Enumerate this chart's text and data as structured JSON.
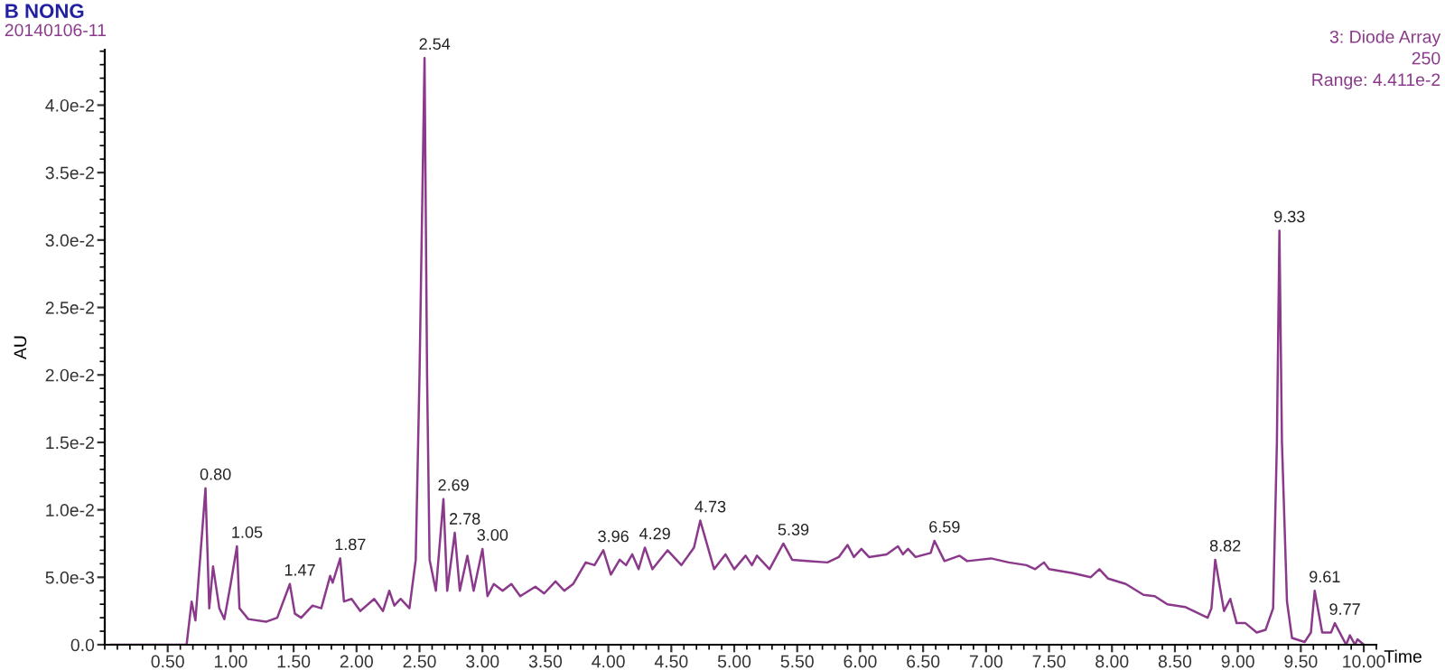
{
  "chart_data": {
    "type": "line",
    "title": "B NONG",
    "subtitle": "20140106-11",
    "xlabel": "Time",
    "ylabel": "AU",
    "annotations": [
      "3: Diode Array",
      "250",
      "Range: 4.411e-2",
      {
        "text": "0.80",
        "x": 0.8,
        "y": 0.0116
      },
      {
        "text": "1.05",
        "x": 1.05,
        "y": 0.0073
      },
      {
        "text": "1.47",
        "x": 1.47,
        "y": 0.0045
      },
      {
        "text": "1.87",
        "x": 1.87,
        "y": 0.0064
      },
      {
        "text": "2.54",
        "x": 2.54,
        "y": 0.0435
      },
      {
        "text": "2.69",
        "x": 2.69,
        "y": 0.0108
      },
      {
        "text": "2.78",
        "x": 2.78,
        "y": 0.0083
      },
      {
        "text": "3.00",
        "x": 3.0,
        "y": 0.0071
      },
      {
        "text": "3.96",
        "x": 3.96,
        "y": 0.007
      },
      {
        "text": "4.29",
        "x": 4.29,
        "y": 0.0072
      },
      {
        "text": "4.73",
        "x": 4.73,
        "y": 0.0092
      },
      {
        "text": "5.39",
        "x": 5.39,
        "y": 0.0075
      },
      {
        "text": "6.59",
        "x": 6.59,
        "y": 0.0077
      },
      {
        "text": "8.82",
        "x": 8.82,
        "y": 0.0063
      },
      {
        "text": "9.33",
        "x": 9.33,
        "y": 0.0307
      },
      {
        "text": "9.61",
        "x": 9.61,
        "y": 0.004
      },
      {
        "text": "9.77",
        "x": 9.77,
        "y": 0.0016
      }
    ],
    "series": [
      {
        "color": "#8b3a8b",
        "x": [
          0.05,
          0.65,
          0.69,
          0.72,
          0.8,
          0.83,
          0.86,
          0.91,
          0.95,
          1.0,
          1.05,
          1.07,
          1.14,
          1.28,
          1.37,
          1.47,
          1.51,
          1.56,
          1.65,
          1.72,
          1.79,
          1.81,
          1.87,
          1.9,
          1.96,
          2.03,
          2.14,
          2.21,
          2.26,
          2.3,
          2.35,
          2.42,
          2.47,
          2.5,
          2.54,
          2.56,
          2.58,
          2.63,
          2.69,
          2.72,
          2.78,
          2.82,
          2.88,
          2.93,
          3.0,
          3.04,
          3.09,
          3.16,
          3.23,
          3.3,
          3.42,
          3.49,
          3.58,
          3.65,
          3.72,
          3.82,
          3.89,
          3.96,
          4.02,
          4.09,
          4.14,
          4.19,
          4.24,
          4.29,
          4.35,
          4.47,
          4.58,
          4.68,
          4.73,
          4.84,
          4.93,
          5.0,
          5.09,
          5.14,
          5.18,
          5.28,
          5.39,
          5.46,
          5.6,
          5.74,
          5.83,
          5.9,
          5.95,
          6.01,
          6.07,
          6.21,
          6.3,
          6.34,
          6.38,
          6.44,
          6.56,
          6.59,
          6.67,
          6.79,
          6.85,
          7.04,
          7.18,
          7.32,
          7.39,
          7.46,
          7.5,
          7.69,
          7.83,
          7.9,
          7.97,
          8.11,
          8.25,
          8.34,
          8.44,
          8.58,
          8.76,
          8.79,
          8.82,
          8.89,
          8.94,
          8.99,
          9.06,
          9.15,
          9.22,
          9.28,
          9.31,
          9.33,
          9.35,
          9.39,
          9.43,
          9.53,
          9.58,
          9.61,
          9.67,
          9.74,
          9.77,
          9.86,
          9.89,
          9.93,
          9.95,
          10.0
        ],
        "values": [
          0,
          0,
          0.0032,
          0.0018,
          0.0116,
          0.0027,
          0.0058,
          0.0027,
          0.0019,
          0.0045,
          0.0073,
          0.0027,
          0.0019,
          0.0017,
          0.002,
          0.0045,
          0.0023,
          0.002,
          0.0029,
          0.0027,
          0.0051,
          0.0046,
          0.0064,
          0.0032,
          0.0034,
          0.0025,
          0.0034,
          0.0025,
          0.004,
          0.0029,
          0.0034,
          0.0027,
          0.0063,
          0.02,
          0.0435,
          0.02,
          0.0063,
          0.004,
          0.0108,
          0.004,
          0.0083,
          0.004,
          0.0066,
          0.004,
          0.0071,
          0.0036,
          0.0045,
          0.004,
          0.0045,
          0.0036,
          0.0043,
          0.0038,
          0.0047,
          0.004,
          0.0045,
          0.0061,
          0.0059,
          0.007,
          0.0052,
          0.0063,
          0.0059,
          0.0067,
          0.0056,
          0.0072,
          0.0056,
          0.007,
          0.0059,
          0.0072,
          0.0092,
          0.0056,
          0.0067,
          0.0056,
          0.0066,
          0.0059,
          0.0066,
          0.0056,
          0.0075,
          0.0063,
          0.0062,
          0.0061,
          0.0065,
          0.0074,
          0.0065,
          0.0071,
          0.0065,
          0.0067,
          0.0073,
          0.0067,
          0.0071,
          0.0065,
          0.0068,
          0.0077,
          0.0062,
          0.0066,
          0.0062,
          0.0064,
          0.0061,
          0.0059,
          0.0056,
          0.0061,
          0.0056,
          0.0053,
          0.005,
          0.0056,
          0.0049,
          0.0045,
          0.0037,
          0.0036,
          0.003,
          0.0028,
          0.002,
          0.0027,
          0.0063,
          0.0025,
          0.0034,
          0.0016,
          0.0016,
          0.0009,
          0.0011,
          0.0027,
          0.015,
          0.0307,
          0.015,
          0.0032,
          0.0005,
          0.0002,
          0.0009,
          0.004,
          0.0009,
          0.0009,
          0.0016,
          0.0,
          0.0007,
          0.0,
          0.0004,
          0.0
        ]
      }
    ],
    "xlim": [
      0.0,
      10.1
    ],
    "ylim": [
      0.0,
      0.0441
    ],
    "xticks": [
      {
        "value": 0.5,
        "label": "0.50"
      },
      {
        "value": 1.0,
        "label": "1.00"
      },
      {
        "value": 1.5,
        "label": "1.50"
      },
      {
        "value": 2.0,
        "label": "2.00"
      },
      {
        "value": 2.5,
        "label": "2.50"
      },
      {
        "value": 3.0,
        "label": "3.00"
      },
      {
        "value": 3.5,
        "label": "3.50"
      },
      {
        "value": 4.0,
        "label": "4.00"
      },
      {
        "value": 4.5,
        "label": "4.50"
      },
      {
        "value": 5.0,
        "label": "5.00"
      },
      {
        "value": 5.5,
        "label": "5.50"
      },
      {
        "value": 6.0,
        "label": "6.00"
      },
      {
        "value": 6.5,
        "label": "6.50"
      },
      {
        "value": 7.0,
        "label": "7.00"
      },
      {
        "value": 7.5,
        "label": "7.50"
      },
      {
        "value": 8.0,
        "label": "8.00"
      },
      {
        "value": 8.5,
        "label": "8.50"
      },
      {
        "value": 9.0,
        "label": "9.00"
      },
      {
        "value": 9.5,
        "label": "9.50"
      },
      {
        "value": 10.0,
        "label": "10.00"
      }
    ],
    "yticks": [
      {
        "value": 0.0,
        "label": "0.0"
      },
      {
        "value": 0.005,
        "label": "5.0e-3"
      },
      {
        "value": 0.01,
        "label": "1.0e-2"
      },
      {
        "value": 0.015,
        "label": "1.5e-2"
      },
      {
        "value": 0.02,
        "label": "2.0e-2"
      },
      {
        "value": 0.025,
        "label": "2.5e-2"
      },
      {
        "value": 0.03,
        "label": "3.0e-2"
      },
      {
        "value": 0.035,
        "label": "3.5e-2"
      },
      {
        "value": 0.04,
        "label": "4.0e-2"
      }
    ],
    "grid": false,
    "legend": false
  }
}
